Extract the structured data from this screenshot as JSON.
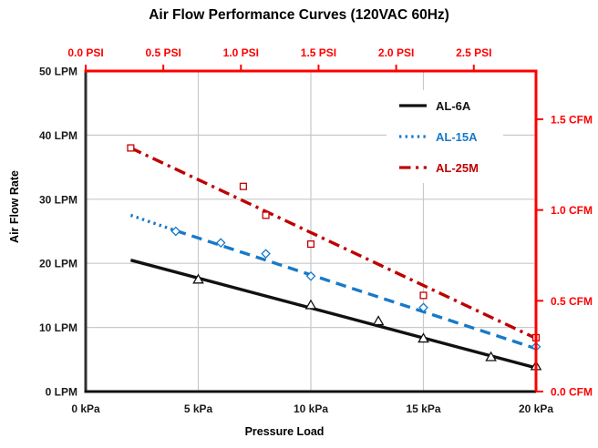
{
  "chart_data": {
    "type": "scatter",
    "title": "Air Flow Performance Curves (120VAC 60Hz)",
    "grid": true,
    "legend": {
      "position": "inside-top-right"
    },
    "style": {
      "grid_color": "#c9c9c9",
      "spine_left": "#303030",
      "spine_bottom": "#111111",
      "spine_secondary": "#ff0000",
      "tick_label_color": "#1a1a1a"
    },
    "x_axis": {
      "label": "Pressure Load",
      "unit": "kPa",
      "min": 0,
      "max": 20,
      "ticks": [
        {
          "v": 0,
          "label": "0 kPa"
        },
        {
          "v": 5,
          "label": "5 kPa"
        },
        {
          "v": 10,
          "label": "10 kPa"
        },
        {
          "v": 15,
          "label": "15 kPa"
        },
        {
          "v": 20,
          "label": "20 kPa"
        }
      ]
    },
    "x2_axis": {
      "unit": "PSI",
      "color": "#ff0000",
      "kpa_per_unit": 6.895,
      "ticks": [
        {
          "v": 0,
          "label": "0.0 PSI"
        },
        {
          "v": 0.5,
          "label": "0.5 PSI"
        },
        {
          "v": 1,
          "label": "1.0 PSI"
        },
        {
          "v": 1.5,
          "label": "1.5 PSI"
        },
        {
          "v": 2,
          "label": "2.0 PSI"
        },
        {
          "v": 2.5,
          "label": "2.5 PSI"
        }
      ]
    },
    "y_axis": {
      "label": "Air Flow Rate",
      "unit": "LPM",
      "min": 0,
      "max": 50,
      "ticks": [
        {
          "v": 0,
          "label": "0 LPM"
        },
        {
          "v": 10,
          "label": "10 LPM"
        },
        {
          "v": 20,
          "label": "20 LPM"
        },
        {
          "v": 30,
          "label": "30 LPM"
        },
        {
          "v": 40,
          "label": "40 LPM"
        },
        {
          "v": 50,
          "label": "50 LPM"
        }
      ]
    },
    "y2_axis": {
      "unit": "CFM",
      "color": "#ff0000",
      "lpm_per_unit": 28.317,
      "ticks": [
        {
          "v": 0,
          "label": "0.0 CFM"
        },
        {
          "v": 0.5,
          "label": "0.5 CFM"
        },
        {
          "v": 1,
          "label": "1.0 CFM"
        },
        {
          "v": 1.5,
          "label": "1.5 CFM"
        }
      ]
    },
    "series": [
      {
        "name": "AL-6A",
        "color": "#111111",
        "marker": "triangle-open",
        "points": [
          [
            5,
            17.5
          ],
          [
            10,
            13.5
          ],
          [
            13,
            11
          ],
          [
            15,
            8.3
          ],
          [
            18,
            5.4
          ],
          [
            20,
            4
          ]
        ],
        "line_segments": [
          {
            "dash": "solid",
            "points": [
              [
                2,
                20.5
              ],
              [
                20.1,
                3.6
              ]
            ]
          }
        ]
      },
      {
        "name": "AL-15A",
        "color": "#1879c9",
        "marker": "diamond-open",
        "points": [
          [
            4,
            25
          ],
          [
            6,
            23.2
          ],
          [
            8,
            21.5
          ],
          [
            10,
            18
          ],
          [
            15,
            13.1
          ],
          [
            20,
            7
          ]
        ],
        "line_segments": [
          {
            "dash": "dotted",
            "points": [
              [
                2,
                27.5
              ],
              [
                4,
                25.1
              ]
            ]
          },
          {
            "dash": "dashed",
            "points": [
              [
                4,
                25.1
              ],
              [
                20,
                6.7
              ]
            ]
          }
        ]
      },
      {
        "name": "AL-25M",
        "color": "#c00000",
        "marker": "square-open",
        "points": [
          [
            2,
            38
          ],
          [
            7,
            32
          ],
          [
            8,
            27.5
          ],
          [
            10,
            23
          ],
          [
            15,
            15
          ],
          [
            20,
            8.4
          ]
        ],
        "line_segments": [
          {
            "dash": "dash-dot",
            "points": [
              [
                2,
                38
              ],
              [
                20,
                8.3
              ]
            ]
          }
        ]
      }
    ]
  }
}
